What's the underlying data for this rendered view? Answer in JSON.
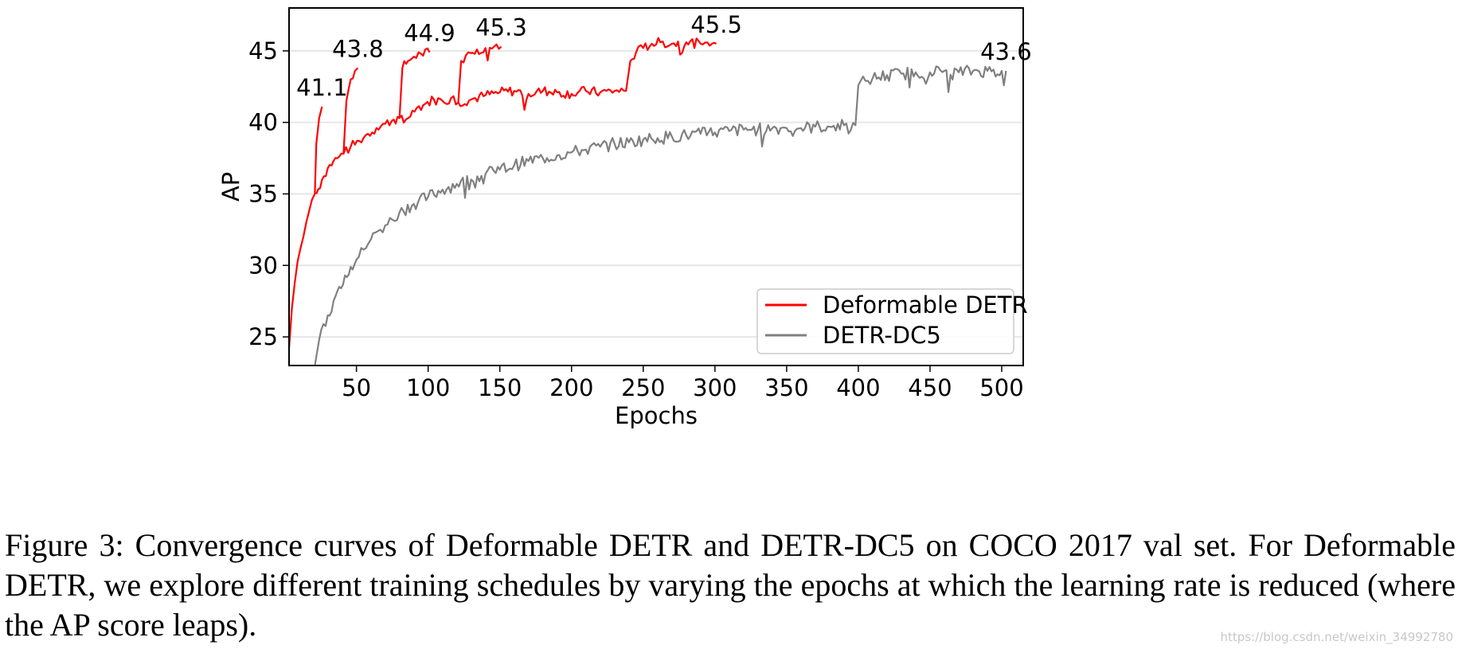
{
  "chart_data": {
    "type": "line",
    "xlabel": "Epochs",
    "ylabel": "AP",
    "xlim": [
      3,
      515
    ],
    "ylim": [
      23,
      48
    ],
    "xticks": [
      50,
      100,
      150,
      200,
      250,
      300,
      350,
      400,
      450,
      500
    ],
    "yticks": [
      25,
      30,
      35,
      40,
      45
    ],
    "grid": "horizontal",
    "legend_position": "lower-right",
    "series": [
      {
        "name": "Deformable DETR",
        "color": "#ff0000",
        "segments": [
          {
            "points": [
              [
                3,
                24.2
              ],
              [
                5,
                27
              ],
              [
                7,
                28.8
              ],
              [
                9,
                30.3
              ],
              [
                11,
                31.2
              ],
              [
                13,
                32.0
              ],
              [
                15,
                33.0
              ],
              [
                17,
                33.8
              ],
              [
                19,
                34.6
              ],
              [
                21,
                35.0
              ],
              [
                22,
                38.5
              ],
              [
                24,
                40.3
              ],
              [
                26,
                41.1
              ]
            ]
          },
          {
            "points": [
              [
                22,
                35.0
              ],
              [
                26,
                36.0
              ],
              [
                30,
                36.8
              ],
              [
                34,
                37.3
              ],
              [
                38,
                37.6
              ],
              [
                41,
                37.8
              ],
              [
                43,
                41.5
              ],
              [
                46,
                43.0
              ],
              [
                49,
                43.6
              ],
              [
                51,
                43.8
              ]
            ]
          },
          {
            "points": [
              [
                41,
                37.8
              ],
              [
                46,
                38.3
              ],
              [
                52,
                38.7
              ],
              [
                58,
                39.2
              ],
              [
                64,
                39.6
              ],
              [
                70,
                39.9
              ],
              [
                76,
                40.2
              ],
              [
                80,
                40.3
              ],
              [
                82,
                43.8
              ],
              [
                86,
                44.3
              ],
              [
                90,
                44.6
              ],
              [
                95,
                44.8
              ],
              [
                101,
                44.9
              ]
            ]
          },
          {
            "points": [
              [
                80,
                40.3
              ],
              [
                86,
                40.3
              ],
              [
                92,
                41.0
              ],
              [
                98,
                41.3
              ],
              [
                104,
                41.6
              ],
              [
                110,
                41.5
              ],
              [
                116,
                41.7
              ],
              [
                121,
                41.4
              ],
              [
                123,
                44.3
              ],
              [
                128,
                44.9
              ],
              [
                134,
                45.1
              ],
              [
                140,
                45.2
              ],
              [
                146,
                45.3
              ],
              [
                151,
                45.3
              ]
            ]
          },
          {
            "points": [
              [
                121,
                41.4
              ],
              [
                130,
                41.6
              ],
              [
                140,
                41.9
              ],
              [
                150,
                42.1
              ],
              [
                160,
                42.2
              ],
              [
                170,
                42.0
              ],
              [
                180,
                42.2
              ],
              [
                190,
                42.1
              ],
              [
                200,
                42.0
              ],
              [
                210,
                42.2
              ],
              [
                220,
                42.1
              ],
              [
                230,
                42.2
              ],
              [
                238,
                42.2
              ],
              [
                241,
                44.3
              ],
              [
                245,
                44.9
              ],
              [
                250,
                45.2
              ],
              [
                256,
                45.5
              ],
              [
                262,
                45.6
              ],
              [
                270,
                45.5
              ],
              [
                280,
                45.6
              ],
              [
                290,
                45.5
              ],
              [
                298,
                45.5
              ],
              [
                301,
                45.5
              ]
            ]
          }
        ]
      },
      {
        "name": "DETR-DC5",
        "color": "#808080",
        "segments": [
          {
            "points": [
              [
                21,
                23.0
              ],
              [
                24,
                24.8
              ],
              [
                27,
                25.9
              ],
              [
                30,
                26.5
              ],
              [
                34,
                27.5
              ],
              [
                38,
                28.5
              ],
              [
                42,
                29.3
              ],
              [
                46,
                29.9
              ],
              [
                50,
                30.4
              ],
              [
                55,
                31.1
              ],
              [
                60,
                31.8
              ],
              [
                65,
                32.4
              ],
              [
                70,
                32.8
              ],
              [
                75,
                33.2
              ],
              [
                80,
                33.7
              ],
              [
                90,
                34.3
              ],
              [
                100,
                34.8
              ],
              [
                110,
                35.3
              ],
              [
                120,
                35.7
              ],
              [
                130,
                36.0
              ],
              [
                140,
                36.4
              ],
              [
                150,
                36.7
              ],
              [
                160,
                37.0
              ],
              [
                170,
                37.3
              ],
              [
                180,
                37.5
              ],
              [
                190,
                37.7
              ],
              [
                200,
                37.9
              ],
              [
                210,
                38.1
              ],
              [
                220,
                38.3
              ],
              [
                230,
                38.5
              ],
              [
                240,
                38.6
              ],
              [
                250,
                38.8
              ],
              [
                260,
                38.9
              ],
              [
                270,
                39.0
              ],
              [
                280,
                39.1
              ],
              [
                290,
                39.2
              ],
              [
                300,
                39.3
              ],
              [
                310,
                39.4
              ],
              [
                320,
                39.5
              ],
              [
                330,
                39.5
              ],
              [
                340,
                39.6
              ],
              [
                350,
                39.6
              ],
              [
                360,
                39.6
              ],
              [
                370,
                39.7
              ],
              [
                380,
                39.7
              ],
              [
                390,
                39.8
              ],
              [
                398,
                39.8
              ],
              [
                400,
                42.6
              ],
              [
                405,
                42.9
              ],
              [
                410,
                43.1
              ],
              [
                420,
                43.3
              ],
              [
                430,
                43.4
              ],
              [
                440,
                43.5
              ],
              [
                450,
                43.5
              ],
              [
                460,
                43.6
              ],
              [
                470,
                43.5
              ],
              [
                480,
                43.6
              ],
              [
                490,
                43.6
              ],
              [
                500,
                43.6
              ],
              [
                503,
                43.6
              ]
            ]
          }
        ]
      }
    ],
    "end_labels": [
      {
        "text": "41.1",
        "x": 26,
        "y": 41.1
      },
      {
        "text": "43.8",
        "x": 51,
        "y": 43.8
      },
      {
        "text": "44.9",
        "x": 101,
        "y": 44.9
      },
      {
        "text": "45.3",
        "x": 151,
        "y": 45.3
      },
      {
        "text": "45.5",
        "x": 301,
        "y": 45.5
      },
      {
        "text": "43.6",
        "x": 503,
        "y": 43.6
      }
    ]
  },
  "caption": "Figure 3: Convergence curves of Deformable DETR and DETR-DC5 on COCO 2017 val set. For Deformable DETR, we explore different training schedules by varying the epochs at which the learning rate is reduced (where the AP score leaps).",
  "watermark": "https://blog.csdn.net/weixin_34992780"
}
